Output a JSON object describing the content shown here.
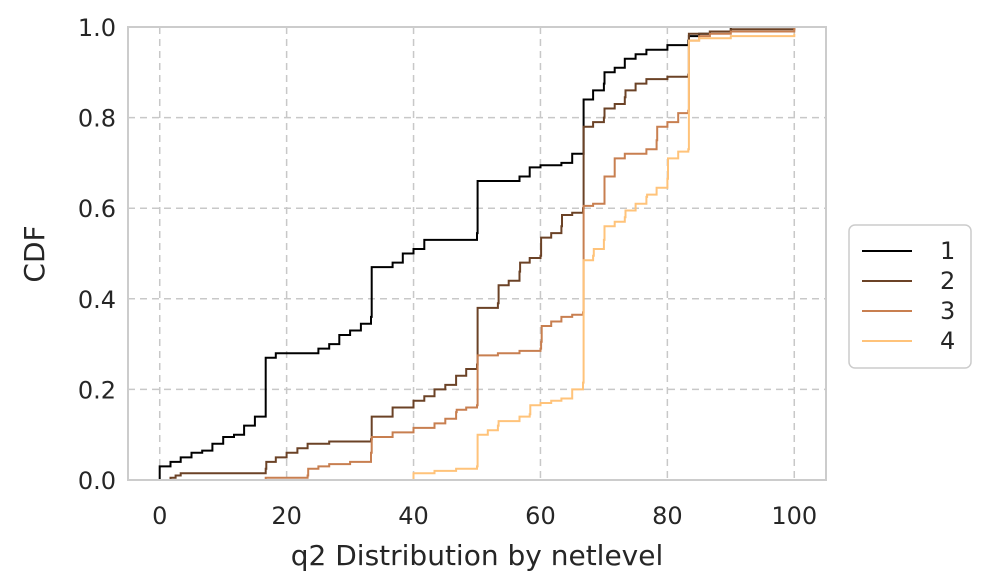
{
  "chart_data": {
    "type": "line",
    "subtype": "step-cdf",
    "title": "",
    "xlabel": "q2 Distribution by netlevel",
    "ylabel": "CDF",
    "xlim": [
      -5,
      105
    ],
    "ylim": [
      0,
      1
    ],
    "xticks": [
      0,
      20,
      40,
      60,
      80,
      100
    ],
    "yticks": [
      0.0,
      0.2,
      0.4,
      0.6,
      0.8,
      1.0
    ],
    "xtick_labels": [
      "0",
      "20",
      "40",
      "60",
      "80",
      "100"
    ],
    "ytick_labels": [
      "0.0",
      "0.2",
      "0.4",
      "0.6",
      "0.8",
      "1.0"
    ],
    "grid": true,
    "legend": {
      "placement": "right-outside",
      "entries": [
        "1",
        "2",
        "3",
        "4"
      ]
    },
    "series": [
      {
        "name": "1",
        "color": "#000000",
        "points": [
          [
            0,
            0.03
          ],
          [
            1.7,
            0.04
          ],
          [
            3.3,
            0.05
          ],
          [
            5,
            0.06
          ],
          [
            6.7,
            0.065
          ],
          [
            8.3,
            0.08
          ],
          [
            10,
            0.095
          ],
          [
            11.7,
            0.1
          ],
          [
            13.3,
            0.12
          ],
          [
            15,
            0.14
          ],
          [
            16.7,
            0.27
          ],
          [
            18.3,
            0.28
          ],
          [
            25,
            0.29
          ],
          [
            26.7,
            0.3
          ],
          [
            28.3,
            0.32
          ],
          [
            30,
            0.33
          ],
          [
            31.7,
            0.345
          ],
          [
            33.3,
            0.36
          ],
          [
            33.4,
            0.47
          ],
          [
            36.7,
            0.48
          ],
          [
            38.3,
            0.5
          ],
          [
            40,
            0.51
          ],
          [
            41.7,
            0.53
          ],
          [
            50,
            0.545
          ],
          [
            50.1,
            0.66
          ],
          [
            56.7,
            0.67
          ],
          [
            58.3,
            0.69
          ],
          [
            60,
            0.695
          ],
          [
            63.3,
            0.7
          ],
          [
            65,
            0.72
          ],
          [
            66.7,
            0.72
          ],
          [
            66.8,
            0.84
          ],
          [
            68.3,
            0.86
          ],
          [
            70,
            0.875
          ],
          [
            70.1,
            0.9
          ],
          [
            71.7,
            0.91
          ],
          [
            73.3,
            0.93
          ],
          [
            75,
            0.94
          ],
          [
            76.7,
            0.95
          ],
          [
            80,
            0.96
          ],
          [
            83.3,
            0.97
          ],
          [
            83.4,
            0.98
          ],
          [
            85,
            0.985
          ],
          [
            86.7,
            0.99
          ],
          [
            90,
            1.0
          ],
          [
            100,
            1.0
          ]
        ]
      },
      {
        "name": "2",
        "color": "#6b4226",
        "points": [
          [
            1.7,
            0.005
          ],
          [
            2.5,
            0.01
          ],
          [
            3.3,
            0.015
          ],
          [
            16.7,
            0.025
          ],
          [
            16.8,
            0.04
          ],
          [
            18.3,
            0.05
          ],
          [
            20,
            0.06
          ],
          [
            21.7,
            0.07
          ],
          [
            23.3,
            0.08
          ],
          [
            26.7,
            0.085
          ],
          [
            33.3,
            0.09
          ],
          [
            33.4,
            0.14
          ],
          [
            36.7,
            0.16
          ],
          [
            40,
            0.175
          ],
          [
            41.7,
            0.185
          ],
          [
            43.3,
            0.2
          ],
          [
            45,
            0.21
          ],
          [
            46.7,
            0.23
          ],
          [
            48.3,
            0.245
          ],
          [
            50,
            0.255
          ],
          [
            50.1,
            0.38
          ],
          [
            53.3,
            0.39
          ],
          [
            53.4,
            0.43
          ],
          [
            55,
            0.44
          ],
          [
            56.7,
            0.46
          ],
          [
            56.8,
            0.48
          ],
          [
            58.3,
            0.49
          ],
          [
            60,
            0.495
          ],
          [
            60.1,
            0.535
          ],
          [
            61.7,
            0.545
          ],
          [
            63.3,
            0.56
          ],
          [
            63.4,
            0.585
          ],
          [
            65,
            0.59
          ],
          [
            66.7,
            0.6
          ],
          [
            66.8,
            0.78
          ],
          [
            68.3,
            0.79
          ],
          [
            70,
            0.8
          ],
          [
            70.1,
            0.82
          ],
          [
            71.7,
            0.83
          ],
          [
            73.3,
            0.845
          ],
          [
            73.4,
            0.86
          ],
          [
            75,
            0.875
          ],
          [
            76.7,
            0.885
          ],
          [
            80,
            0.89
          ],
          [
            83.3,
            0.895
          ],
          [
            83.4,
            0.985
          ],
          [
            86.7,
            0.99
          ],
          [
            90,
            0.995
          ],
          [
            100,
            1.0
          ]
        ]
      },
      {
        "name": "3",
        "color": "#c87f50",
        "points": [
          [
            16.7,
            0.005
          ],
          [
            23.3,
            0.01
          ],
          [
            23.4,
            0.025
          ],
          [
            25,
            0.03
          ],
          [
            26.7,
            0.035
          ],
          [
            30,
            0.04
          ],
          [
            33.3,
            0.06
          ],
          [
            33.4,
            0.095
          ],
          [
            36.7,
            0.105
          ],
          [
            40,
            0.115
          ],
          [
            43.3,
            0.125
          ],
          [
            45,
            0.135
          ],
          [
            46.7,
            0.15
          ],
          [
            46.8,
            0.155
          ],
          [
            48.3,
            0.16
          ],
          [
            50,
            0.165
          ],
          [
            50.1,
            0.275
          ],
          [
            53.3,
            0.28
          ],
          [
            56.7,
            0.285
          ],
          [
            60,
            0.29
          ],
          [
            60.1,
            0.305
          ],
          [
            60.2,
            0.34
          ],
          [
            61.7,
            0.35
          ],
          [
            63.3,
            0.36
          ],
          [
            65,
            0.365
          ],
          [
            66.7,
            0.37
          ],
          [
            66.8,
            0.605
          ],
          [
            68.3,
            0.61
          ],
          [
            70,
            0.61
          ],
          [
            70.1,
            0.67
          ],
          [
            71.7,
            0.71
          ],
          [
            73.3,
            0.72
          ],
          [
            76.7,
            0.73
          ],
          [
            78.3,
            0.75
          ],
          [
            78.4,
            0.78
          ],
          [
            80,
            0.79
          ],
          [
            81.7,
            0.81
          ],
          [
            83.3,
            0.815
          ],
          [
            83.4,
            0.97
          ],
          [
            85,
            0.98
          ],
          [
            86.7,
            0.985
          ],
          [
            90,
            0.99
          ],
          [
            100,
            1.0
          ]
        ]
      },
      {
        "name": "4",
        "color": "#ffc37a",
        "points": [
          [
            40,
            0.015
          ],
          [
            43.3,
            0.02
          ],
          [
            46.7,
            0.025
          ],
          [
            50,
            0.03
          ],
          [
            50.1,
            0.1
          ],
          [
            51.7,
            0.11
          ],
          [
            53.3,
            0.12
          ],
          [
            53.4,
            0.13
          ],
          [
            56.7,
            0.14
          ],
          [
            58.3,
            0.145
          ],
          [
            58.4,
            0.165
          ],
          [
            60,
            0.17
          ],
          [
            61.7,
            0.175
          ],
          [
            63.3,
            0.18
          ],
          [
            65,
            0.2
          ],
          [
            66.7,
            0.215
          ],
          [
            66.8,
            0.485
          ],
          [
            68.3,
            0.495
          ],
          [
            68.4,
            0.51
          ],
          [
            70,
            0.53
          ],
          [
            70.1,
            0.56
          ],
          [
            71.7,
            0.57
          ],
          [
            73.3,
            0.58
          ],
          [
            73.4,
            0.595
          ],
          [
            75,
            0.61
          ],
          [
            76.7,
            0.625
          ],
          [
            76.8,
            0.63
          ],
          [
            78.3,
            0.645
          ],
          [
            80,
            0.665
          ],
          [
            80.1,
            0.71
          ],
          [
            81.7,
            0.725
          ],
          [
            83.3,
            0.73
          ],
          [
            83.4,
            0.97
          ],
          [
            85,
            0.975
          ],
          [
            90,
            0.98
          ],
          [
            100,
            0.985
          ]
        ]
      }
    ]
  }
}
